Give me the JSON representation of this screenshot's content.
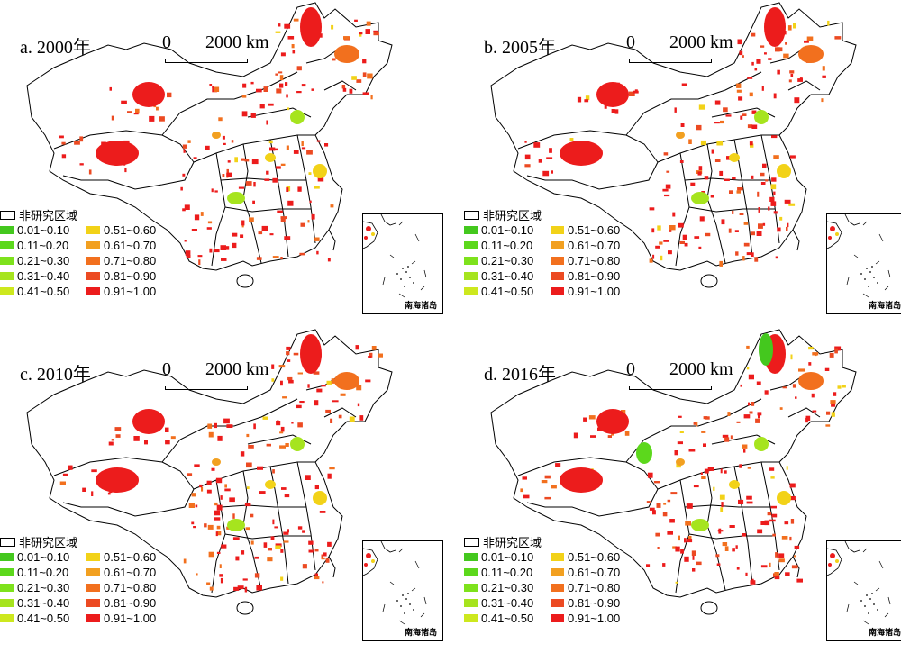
{
  "panels": [
    {
      "title": "a. 2000年",
      "variant": 0
    },
    {
      "title": "b. 2005年",
      "variant": 1
    },
    {
      "title": "c. 2010年",
      "variant": 2
    },
    {
      "title": "d. 2016年",
      "variant": 3
    }
  ],
  "scale_bar": {
    "zero": "0",
    "distance": "2000 km"
  },
  "legend": {
    "non_research_label": "非研究区域",
    "classes": [
      {
        "label": "0.01~0.10",
        "color": "#44c81e"
      },
      {
        "label": "0.51~0.60",
        "color": "#f2d218"
      },
      {
        "label": "0.11~0.20",
        "color": "#5cd81c"
      },
      {
        "label": "0.61~0.70",
        "color": "#f2a020"
      },
      {
        "label": "0.21~0.30",
        "color": "#7ee21c"
      },
      {
        "label": "0.71~0.80",
        "color": "#f2701e"
      },
      {
        "label": "0.31~0.40",
        "color": "#a6e41e"
      },
      {
        "label": "0.81~0.90",
        "color": "#ec4a22"
      },
      {
        "label": "0.41~0.50",
        "color": "#cde81e"
      },
      {
        "label": "0.91~1.00",
        "color": "#ec1c1c"
      }
    ]
  },
  "inset_label": "南海诸岛"
}
